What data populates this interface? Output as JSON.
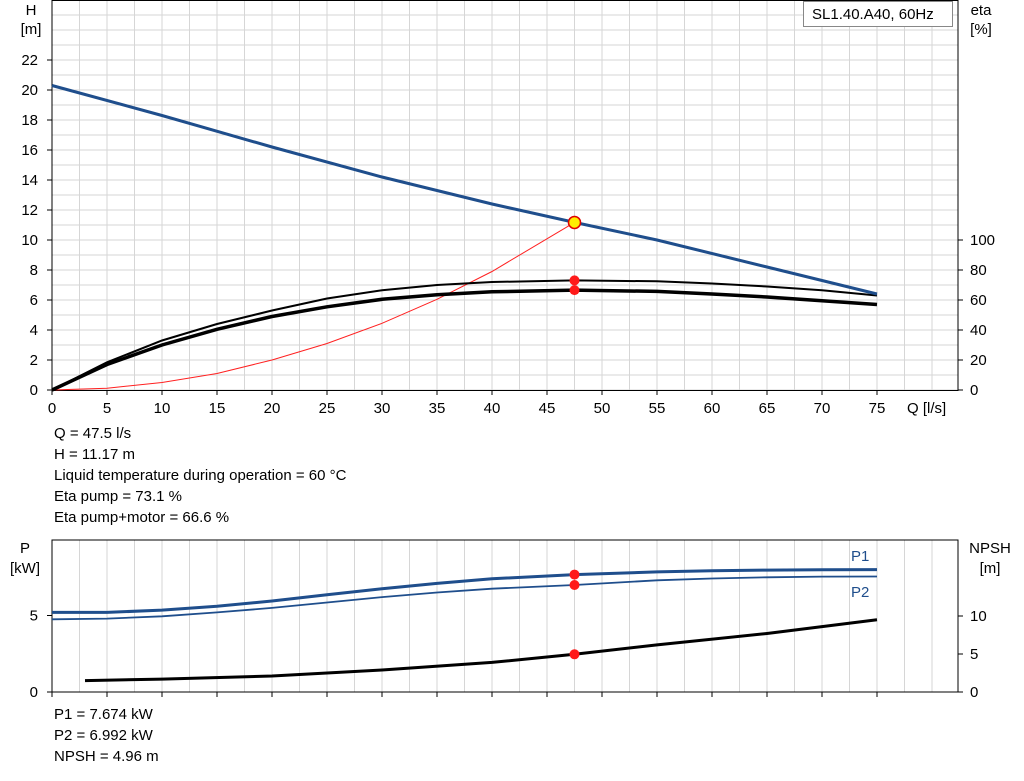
{
  "chart_data": [
    {
      "type": "line",
      "legend": "SL1.40.A40, 60Hz",
      "ylabel_left": [
        "H",
        "[m]"
      ],
      "ylabel_right": [
        "eta",
        "[%]"
      ],
      "xlabel": "Q [l/s]",
      "xlim": [
        0,
        82
      ],
      "ylim_left": [
        0,
        25
      ],
      "ylim_right": [
        0,
        100
      ],
      "x_ticks": [
        0,
        5,
        10,
        15,
        20,
        25,
        30,
        35,
        40,
        45,
        50,
        55,
        60,
        65,
        70,
        75
      ],
      "y_ticks_left": [
        0,
        2,
        4,
        6,
        8,
        10,
        12,
        14,
        16,
        18,
        20,
        22
      ],
      "y_ticks_right": [
        0,
        20,
        40,
        60,
        80,
        100
      ],
      "series": [
        {
          "role": "head",
          "color": "#1f4e8c",
          "x": [
            0,
            10,
            20,
            30,
            40,
            47.5,
            55,
            65,
            75
          ],
          "y": [
            20.3,
            18.3,
            16.2,
            14.2,
            12.4,
            11.17,
            10.0,
            8.2,
            6.4
          ]
        },
        {
          "role": "eta-pump",
          "color": "#000000",
          "x": [
            0,
            5,
            10,
            15,
            20,
            25,
            30,
            35,
            40,
            47.5,
            55,
            60,
            65,
            70,
            75
          ],
          "y": [
            0,
            18.5,
            33,
            44,
            53,
            61,
            66.5,
            70,
            72,
            73.1,
            72.5,
            71,
            69,
            66.5,
            63
          ]
        },
        {
          "role": "eta-pump-motor",
          "color": "#000000",
          "x": [
            0,
            5,
            10,
            15,
            20,
            25,
            30,
            35,
            40,
            47.5,
            55,
            60,
            65,
            70,
            75
          ],
          "y": [
            0,
            17,
            30,
            40.5,
            49,
            55.5,
            60.5,
            63.5,
            65.5,
            66.6,
            65.7,
            64,
            62,
            59.5,
            57
          ]
        },
        {
          "role": "system-curve",
          "color": "#ff2020",
          "x": [
            0,
            5,
            10,
            15,
            20,
            25,
            30,
            35,
            40,
            47.5
          ],
          "y": [
            0,
            0.12,
            0.5,
            1.1,
            2.0,
            3.1,
            4.45,
            6.05,
            7.9,
            11.17
          ]
        }
      ],
      "operating_point": {
        "Q": 47.5,
        "H": 11.17,
        "eta_pump": 73.1,
        "eta_pump_motor": 66.6
      }
    },
    {
      "type": "line",
      "ylabel_left": [
        "P",
        "[kW]"
      ],
      "ylabel_right": [
        "NPSH",
        "[m]"
      ],
      "xlim": [
        0,
        82
      ],
      "ylim_left": [
        0,
        10
      ],
      "ylim_right": [
        0,
        20
      ],
      "y_ticks_left": [
        0,
        5
      ],
      "y_ticks_right": [
        0,
        5,
        10
      ],
      "series": [
        {
          "name": "P1",
          "color": "#1f4e8c",
          "x": [
            0,
            5,
            10,
            15,
            20,
            25,
            30,
            35,
            40,
            47.5,
            55,
            60,
            65,
            70,
            75
          ],
          "y": [
            5.2,
            5.2,
            5.35,
            5.6,
            5.95,
            6.35,
            6.75,
            7.1,
            7.4,
            7.674,
            7.85,
            7.93,
            7.97,
            7.99,
            8.0
          ]
        },
        {
          "name": "P2",
          "color": "#1f4e8c",
          "x": [
            0,
            5,
            10,
            15,
            20,
            25,
            30,
            35,
            40,
            47.5,
            55,
            60,
            65,
            70,
            75
          ],
          "y": [
            4.75,
            4.8,
            4.95,
            5.2,
            5.5,
            5.85,
            6.2,
            6.5,
            6.75,
            6.992,
            7.3,
            7.42,
            7.5,
            7.54,
            7.55
          ]
        },
        {
          "role": "npsh",
          "color": "#000000",
          "x": [
            3,
            10,
            20,
            30,
            40,
            47.5,
            55,
            65,
            75
          ],
          "y": [
            1.5,
            1.7,
            2.1,
            2.9,
            3.9,
            4.96,
            6.2,
            7.7,
            9.5
          ]
        }
      ]
    }
  ],
  "info_top": [
    "Q = 47.5 l/s",
    "H = 11.17 m",
    "Liquid temperature during operation = 60 °C",
    "Eta pump = 73.1 %",
    "Eta pump+motor = 66.6 %"
  ],
  "info_bottom": [
    "P1 = 7.674 kW",
    "P2 = 6.992 kW",
    "NPSH = 4.96 m"
  ]
}
